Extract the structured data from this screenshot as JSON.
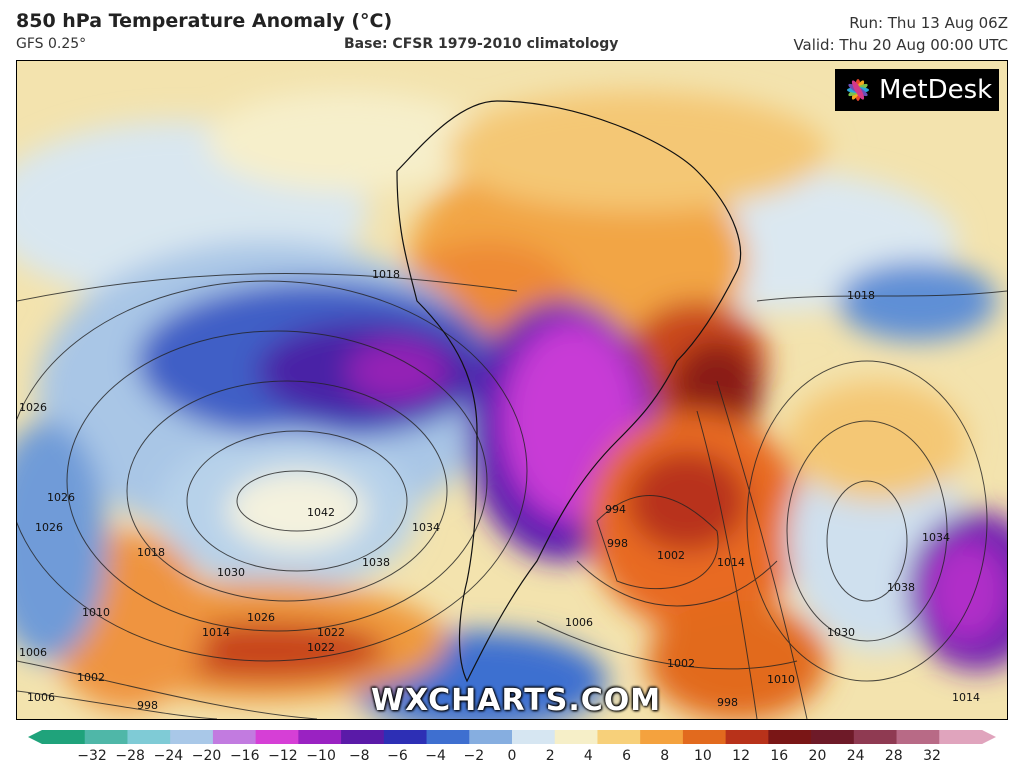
{
  "header": {
    "title": "850 hPa Temperature Anomaly (°C)",
    "model": "GFS 0.25°",
    "base": "Base: CFSR 1979-2010 climatology",
    "run": "Run: Thu 13 Aug 06Z",
    "valid": "Valid: Thu 20 Aug 00:00 UTC"
  },
  "logo": {
    "text": "MetDesk",
    "icon": "flower-logo-icon"
  },
  "watermark": "WXCHARTS.COM",
  "colorbar": {
    "ticks": [
      "−32",
      "−28",
      "−24",
      "−20",
      "−16",
      "−12",
      "−10",
      "−8",
      "−6",
      "−4",
      "−2",
      "0",
      "2",
      "4",
      "6",
      "8",
      "10",
      "12",
      "16",
      "20",
      "24",
      "28",
      "32"
    ],
    "colors": [
      "#1fa37b",
      "#4fb7a8",
      "#7fcbd6",
      "#a9c8e8",
      "#c27be0",
      "#d63fd6",
      "#9a22c2",
      "#5a1aa8",
      "#2d2fb5",
      "#3e6fd0",
      "#86aee0",
      "#d6e6f2",
      "#f6efc8",
      "#f7d07a",
      "#f4a23e",
      "#e26a1e",
      "#b8321a",
      "#7a1616",
      "#6e1a28",
      "#8f3a52",
      "#b86a86",
      "#e0a4bd"
    ],
    "min": -32,
    "max": 32
  },
  "isobars": [
    "1018",
    "1018",
    "1026",
    "1026",
    "1042",
    "1038",
    "1034",
    "1030",
    "1018",
    "1014",
    "1010",
    "1006",
    "1002",
    "998",
    "1026",
    "1022",
    "994",
    "998",
    "1002",
    "1006",
    "1014",
    "1010",
    "998",
    "1006",
    "1002",
    "1038",
    "1034",
    "1030",
    "1014",
    "1026",
    "1022"
  ]
}
